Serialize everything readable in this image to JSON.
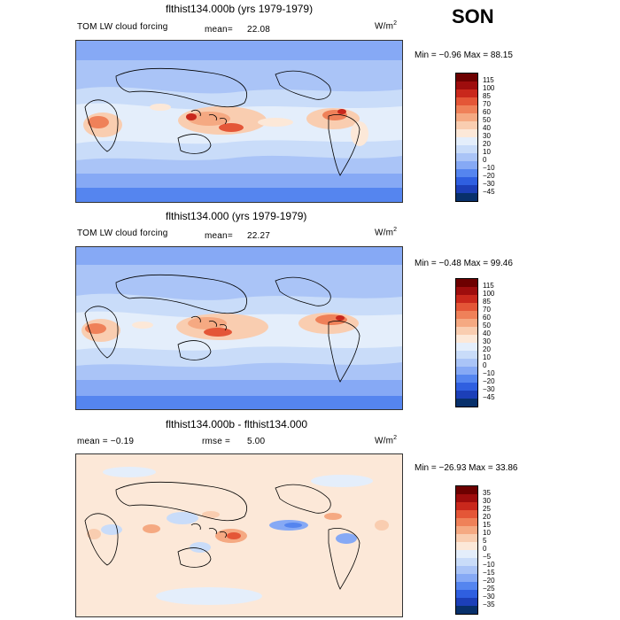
{
  "season": "SON",
  "panels": [
    {
      "title": "flthist134.000b (yrs 1979-1979)",
      "left_label": "TOM LW cloud forcing",
      "stat1_label": "mean=",
      "stat1_value": "22.08",
      "units": "W/m",
      "units_sup": "2",
      "minmax": "Min = −0.96 Max =  88.15",
      "colorbar_ticks": [
        "115",
        "100",
        "85",
        "70",
        "60",
        "50",
        "40",
        "30",
        "20",
        "10",
        "0",
        "−10",
        "−20",
        "−30",
        "−45"
      ]
    },
    {
      "title": "flthist134.000 (yrs 1979-1979)",
      "left_label": "TOM LW cloud forcing",
      "stat1_label": "mean=",
      "stat1_value": "22.27",
      "units": "W/m",
      "units_sup": "2",
      "minmax": "Min = −0.48 Max =  99.46",
      "colorbar_ticks": [
        "115",
        "100",
        "85",
        "70",
        "60",
        "50",
        "40",
        "30",
        "20",
        "10",
        "0",
        "−10",
        "−20",
        "−30",
        "−45"
      ]
    },
    {
      "title": "flthist134.000b - flthist134.000",
      "left_label": "mean =  −0.19",
      "stat1_label": "rmse =",
      "stat1_value": "5.00",
      "units": "W/m",
      "units_sup": "2",
      "minmax": "Min = −26.93 Max =  33.86",
      "colorbar_ticks": [
        "35",
        "30",
        "25",
        "20",
        "15",
        "10",
        "5",
        "0",
        "−5",
        "−10",
        "−15",
        "−20",
        "−25",
        "−30",
        "−35"
      ]
    }
  ],
  "colors": {
    "abs_scale": [
      "#08306b",
      "#1c3fb8",
      "#2f5fe0",
      "#5585ef",
      "#86a9f5",
      "#aac4f7",
      "#c9dcf9",
      "#e4eefb",
      "#fce8d8",
      "#f9cdb0",
      "#f5a982",
      "#ef8159",
      "#e45637",
      "#c9281c",
      "#9e0d0d",
      "#6d0000"
    ],
    "diff_scale": [
      "#08306b",
      "#1c3fb8",
      "#2f5fe0",
      "#5585ef",
      "#86a9f5",
      "#aac4f7",
      "#c9dcf9",
      "#e4eefb",
      "#fce8d8",
      "#f9cdb0",
      "#f5a982",
      "#ef8159",
      "#e45637",
      "#c9281c",
      "#9e0d0d",
      "#6d0000"
    ],
    "map_border": "#333333"
  },
  "chart_data": [
    {
      "type": "heatmap",
      "title": "flthist134.000b (yrs 1979-1979)",
      "variable": "TOM LW cloud forcing",
      "units": "W/m2",
      "mean": 22.08,
      "min": -0.96,
      "max": 88.15,
      "season": "SON",
      "contour_levels": [
        -45,
        -30,
        -20,
        -10,
        0,
        10,
        20,
        30,
        40,
        50,
        60,
        70,
        85,
        100,
        115
      ]
    },
    {
      "type": "heatmap",
      "title": "flthist134.000 (yrs 1979-1979)",
      "variable": "TOM LW cloud forcing",
      "units": "W/m2",
      "mean": 22.27,
      "min": -0.48,
      "max": 99.46,
      "season": "SON",
      "contour_levels": [
        -45,
        -30,
        -20,
        -10,
        0,
        10,
        20,
        30,
        40,
        50,
        60,
        70,
        85,
        100,
        115
      ]
    },
    {
      "type": "heatmap",
      "title": "flthist134.000b - flthist134.000",
      "units": "W/m2",
      "mean": -0.19,
      "rmse": 5.0,
      "min": -26.93,
      "max": 33.86,
      "season": "SON",
      "contour_levels": [
        -35,
        -30,
        -25,
        -20,
        -15,
        -10,
        -5,
        0,
        5,
        10,
        15,
        20,
        25,
        30,
        35
      ]
    }
  ]
}
